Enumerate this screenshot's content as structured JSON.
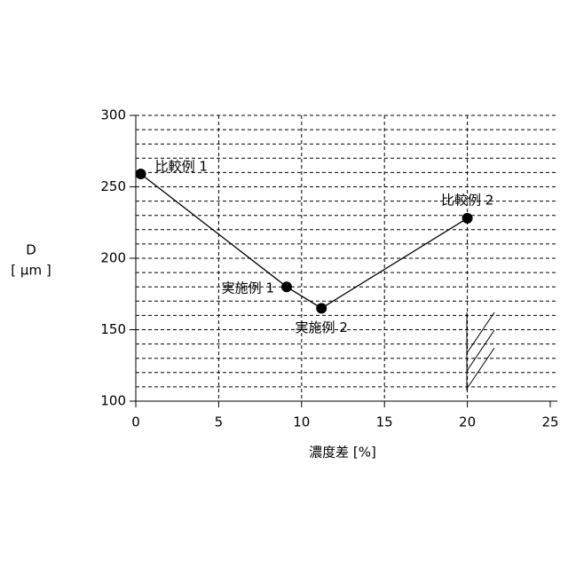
{
  "chart_data": {
    "type": "line",
    "x_label": "濃度差 [%]",
    "y_label": "D",
    "y_unit": "[ μm ]",
    "x": [
      0.3,
      9.1,
      11.2,
      20
    ],
    "series": [
      {
        "values": [
          259,
          180,
          165,
          228
        ],
        "color": "#000000",
        "point_labels": [
          "比較例 1",
          "実施例 1",
          "実施例 2",
          "比較例 2"
        ]
      }
    ],
    "xlim": [
      0,
      25
    ],
    "xticks": [
      0,
      5,
      10,
      15,
      20,
      25
    ],
    "ylim": [
      100,
      300
    ],
    "yticks": [
      100,
      150,
      200,
      250,
      300
    ],
    "ygrid": [
      110,
      120,
      130,
      140,
      150,
      160,
      170,
      180,
      190,
      200,
      210,
      220,
      230,
      240,
      250,
      260,
      270,
      280,
      290,
      300
    ],
    "xgrid": [
      5,
      10,
      15,
      20
    ],
    "grid": true
  }
}
